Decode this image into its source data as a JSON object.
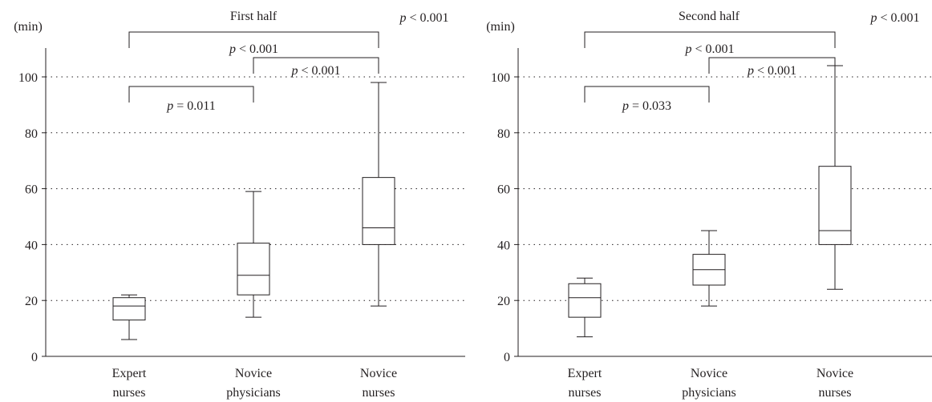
{
  "chart_data": [
    {
      "type": "box",
      "title": "First half",
      "ylabel": "(min)",
      "ylim": [
        0,
        110
      ],
      "yticks": [
        0,
        20,
        40,
        60,
        80,
        100
      ],
      "grid": "horizontal dotted",
      "categories": [
        {
          "line1": "Expert",
          "line2": "nurses"
        },
        {
          "line1": "Novice",
          "line2": "physicians"
        },
        {
          "line1": "Novice",
          "line2": "nurses"
        }
      ],
      "boxes": [
        {
          "min": 6,
          "q1": 13,
          "median": 18,
          "q3": 21,
          "max": 22
        },
        {
          "min": 14,
          "q1": 22,
          "median": 29,
          "q3": 40.5,
          "max": 59
        },
        {
          "min": 18,
          "q1": 40,
          "median": 46,
          "q3": 64,
          "max": 98
        }
      ],
      "overall_p": {
        "italic": "p",
        "text": " < 0.001"
      },
      "brackets": [
        {
          "from": 0,
          "to": 2,
          "italic": "p",
          "text": " < 0.001"
        },
        {
          "from": 1,
          "to": 2,
          "italic": "p",
          "text": " < 0.001"
        },
        {
          "from": 0,
          "to": 1,
          "italic": "p",
          "text": " = 0.011"
        }
      ]
    },
    {
      "type": "box",
      "title": "Second half",
      "ylabel": "(min)",
      "ylim": [
        0,
        110
      ],
      "yticks": [
        0,
        20,
        40,
        60,
        80,
        100
      ],
      "grid": "horizontal dotted",
      "categories": [
        {
          "line1": "Expert",
          "line2": "nurses"
        },
        {
          "line1": "Novice",
          "line2": "physicians"
        },
        {
          "line1": "Novice",
          "line2": "nurses"
        }
      ],
      "boxes": [
        {
          "min": 7,
          "q1": 14,
          "median": 21,
          "q3": 26,
          "max": 28
        },
        {
          "min": 18,
          "q1": 25.5,
          "median": 31,
          "q3": 36.5,
          "max": 45
        },
        {
          "min": 24,
          "q1": 40,
          "median": 45,
          "q3": 68,
          "max": 104
        }
      ],
      "overall_p": {
        "italic": "p",
        "text": " < 0.001"
      },
      "brackets": [
        {
          "from": 0,
          "to": 2,
          "italic": "p",
          "text": " < 0.001"
        },
        {
          "from": 1,
          "to": 2,
          "italic": "p",
          "text": " < 0.001"
        },
        {
          "from": 0,
          "to": 1,
          "italic": "p",
          "text": " = 0.033"
        }
      ]
    }
  ]
}
